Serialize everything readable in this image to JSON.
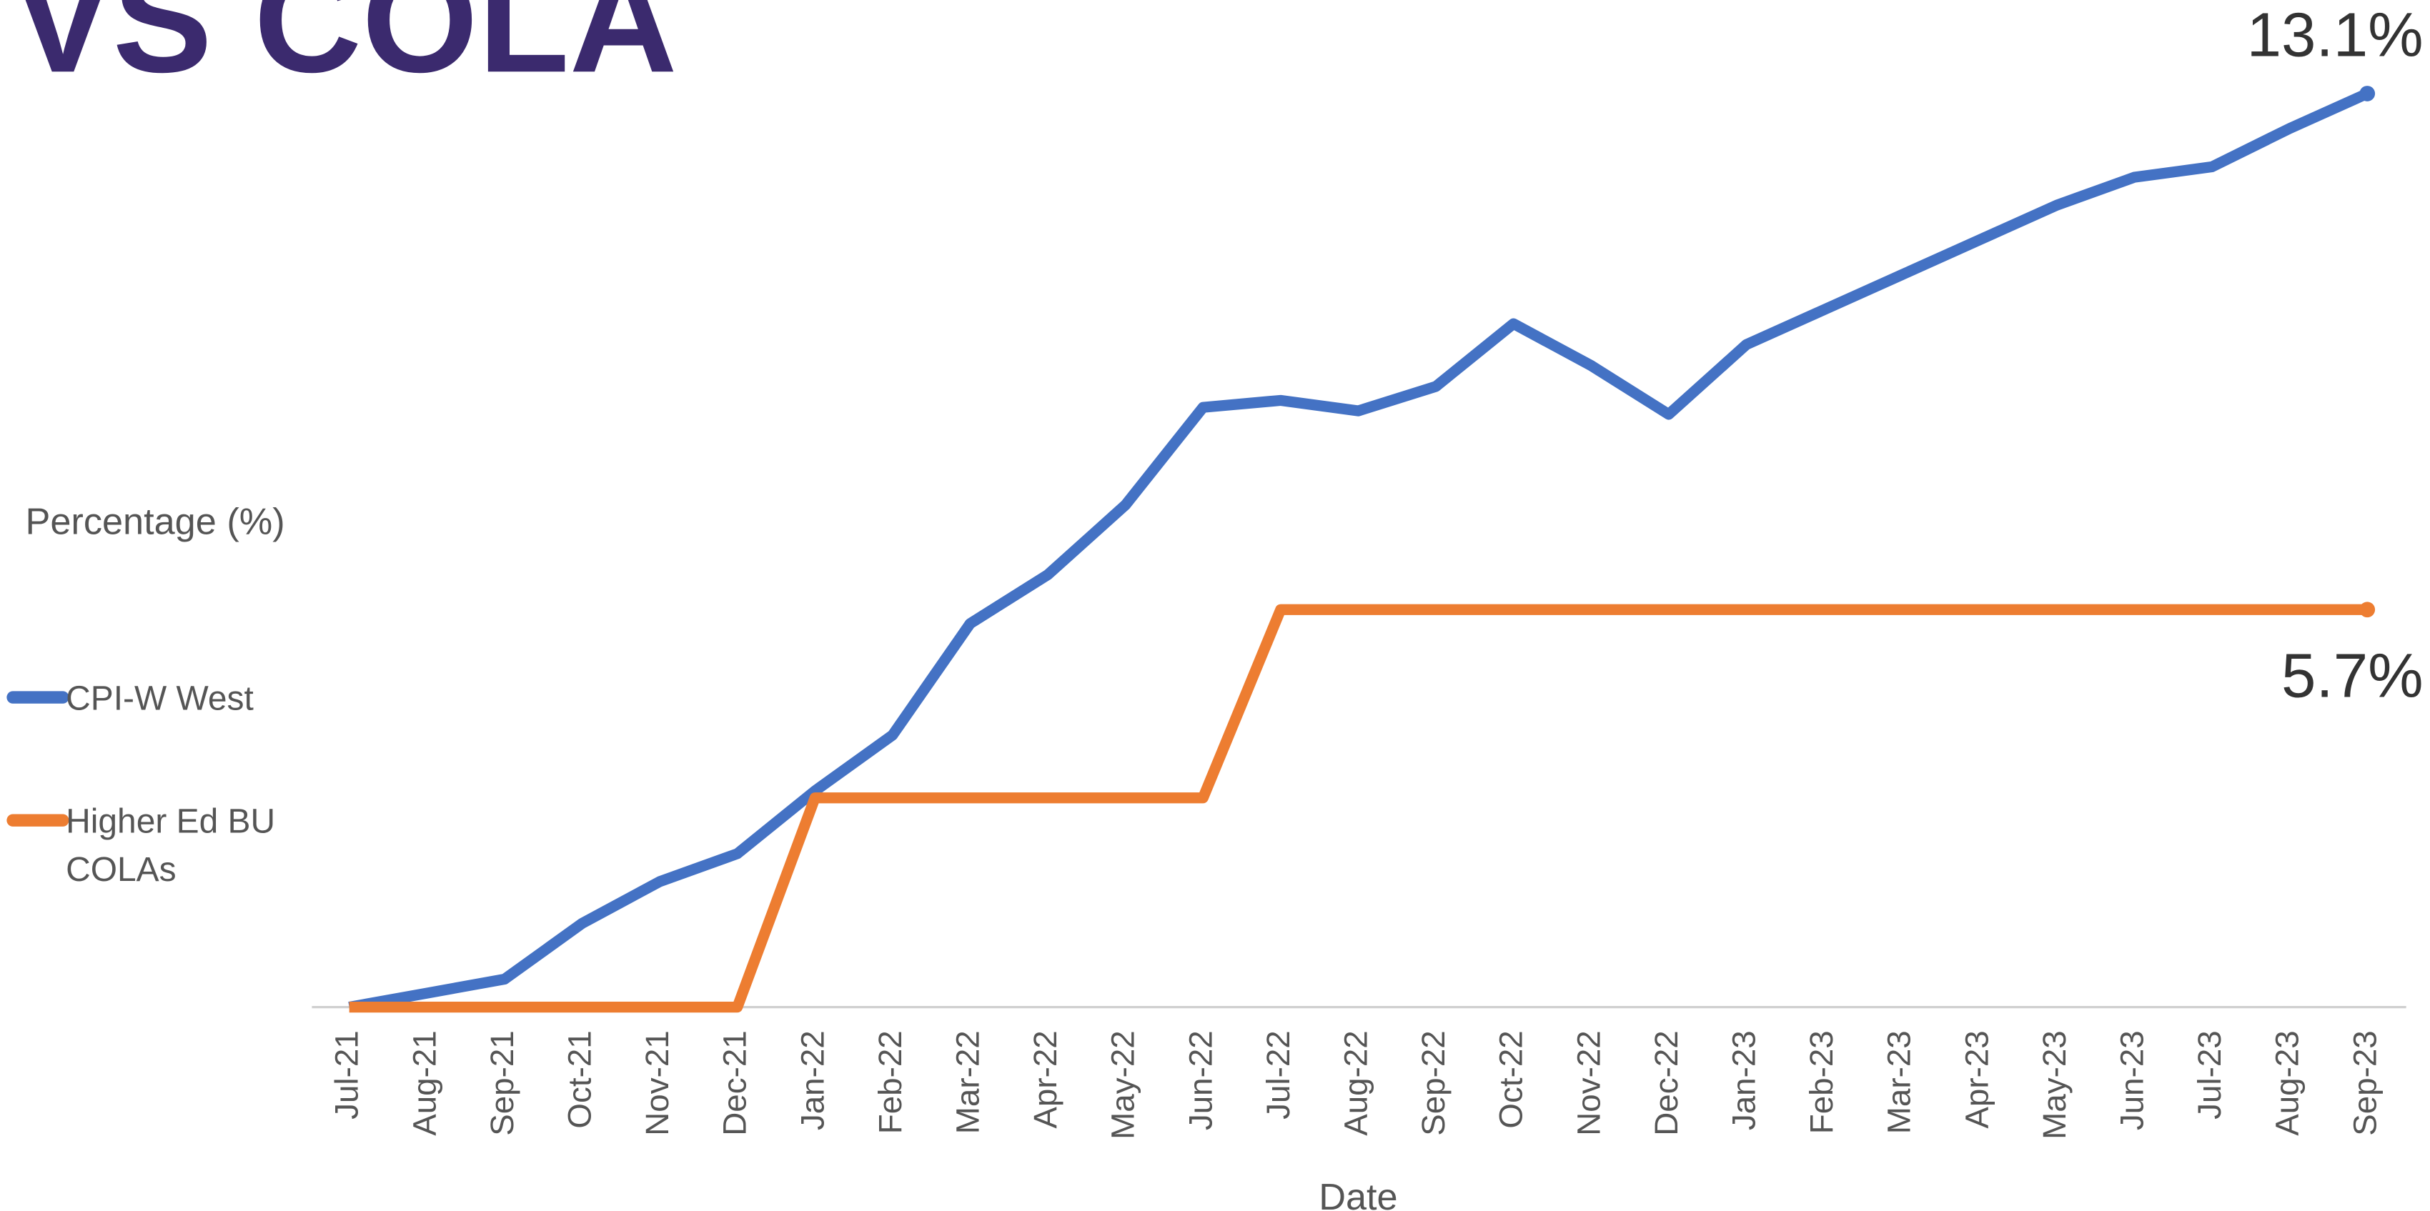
{
  "chart_data": {
    "type": "line",
    "title": "VS COLA",
    "y_label": "Percentage (%)",
    "x_label": "Date",
    "categories": [
      "Jul-21",
      "Aug-21",
      "Sep-21",
      "Oct-21",
      "Nov-21",
      "Dec-21",
      "Jan-22",
      "Feb-22",
      "Mar-22",
      "Apr-22",
      "May-22",
      "Jun-22",
      "Jul-22",
      "Aug-22",
      "Sep-22",
      "Oct-22",
      "Nov-22",
      "Dec-22",
      "Jan-23",
      "Feb-23",
      "Mar-23",
      "Apr-23",
      "May-23",
      "Jun-23",
      "Jul-23",
      "Aug-23",
      "Sep-23"
    ],
    "series": [
      {
        "name": "CPI-W West",
        "color": "#4472c4",
        "values": [
          0,
          0.2,
          0.4,
          1.2,
          1.8,
          2.2,
          3.1,
          3.9,
          5.5,
          6.2,
          7.2,
          8.6,
          8.7,
          8.55,
          8.9,
          9.8,
          9.2,
          8.5,
          9.5,
          10.0,
          10.5,
          11.0,
          11.5,
          11.9,
          12.05,
          12.6,
          13.1
        ],
        "value_labels": [
          null,
          null,
          null,
          null,
          null,
          null,
          null,
          null,
          null,
          null,
          null,
          null,
          null,
          null,
          null,
          null,
          null,
          null,
          null,
          null,
          null,
          null,
          null,
          null,
          null,
          null,
          "13.1%"
        ]
      },
      {
        "name": "Higher Ed BU COLAs",
        "color": "#ed7d31",
        "values": [
          0,
          0,
          0,
          0,
          0,
          0,
          3.0,
          3.0,
          3.0,
          3.0,
          3.0,
          3.0,
          5.7,
          5.7,
          5.7,
          5.7,
          5.7,
          5.7,
          5.7,
          5.7,
          5.7,
          5.7,
          5.7,
          5.7,
          5.7,
          5.7,
          5.7
        ],
        "value_labels": [
          null,
          null,
          null,
          null,
          null,
          null,
          null,
          null,
          null,
          null,
          null,
          null,
          null,
          null,
          null,
          null,
          null,
          null,
          null,
          null,
          null,
          null,
          null,
          null,
          null,
          null,
          "5.7%"
        ]
      }
    ],
    "ylim": [
      0,
      14
    ],
    "legend": "left"
  }
}
